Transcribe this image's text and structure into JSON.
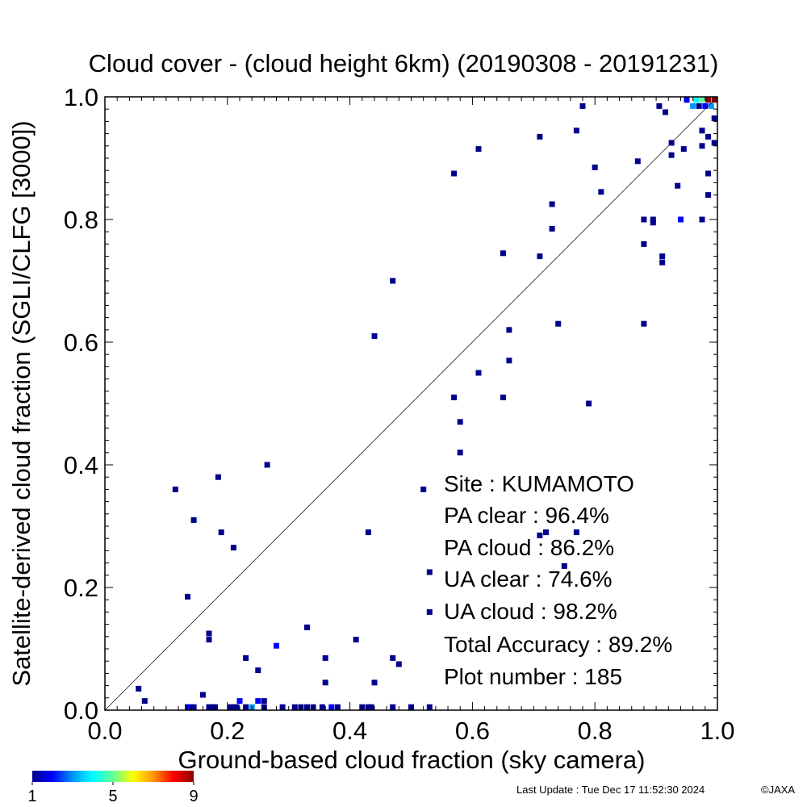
{
  "chart_data": {
    "type": "heatmap",
    "title": "Cloud cover - (cloud height 6km)  (20190308 - 20191231)",
    "xlabel": "Ground-based cloud fraction (sky camera)",
    "ylabel": "Satellite-derived cloud fraction (SGLI/CLFG [3000])",
    "xlim": [
      0.0,
      1.0
    ],
    "ylim": [
      0.0,
      1.0
    ],
    "x_ticks": [
      "0.0",
      "0.2",
      "0.4",
      "0.6",
      "0.8",
      "1.0"
    ],
    "y_ticks": [
      "0.0",
      "0.2",
      "0.4",
      "0.6",
      "0.8",
      "1.0"
    ],
    "diagonal_line": true,
    "grid": false,
    "colorbar": {
      "min": 1,
      "max": 9,
      "labels": [
        "1",
        "5",
        "9"
      ],
      "colors": [
        "#00008c",
        "#0000ff",
        "#0096ff",
        "#00ffff",
        "#64ff96",
        "#ffff00",
        "#ff9600",
        "#ff0000",
        "#8c0000"
      ]
    },
    "stats_panel": {
      "site": "Site : KUMAMOTO",
      "pa_clear": "PA clear :  96.4%",
      "pa_cloud": "PA cloud :  86.2%",
      "ua_clear": "UA clear :  74.6%",
      "ua_cloud": "UA cloud :  98.2%",
      "total": "Total Accuracy :  89.2%",
      "plot_number": "Plot number :       185"
    },
    "points": [
      {
        "x": 0.055,
        "y": 0.035,
        "count": 1
      },
      {
        "x": 0.065,
        "y": 0.015,
        "count": 1
      },
      {
        "x": 0.115,
        "y": 0.36,
        "count": 1
      },
      {
        "x": 0.135,
        "y": 0.185,
        "count": 1
      },
      {
        "x": 0.145,
        "y": 0.31,
        "count": 1
      },
      {
        "x": 0.16,
        "y": 0.025,
        "count": 1
      },
      {
        "x": 0.17,
        "y": 0.125,
        "count": 1
      },
      {
        "x": 0.17,
        "y": 0.115,
        "count": 1
      },
      {
        "x": 0.185,
        "y": 0.38,
        "count": 1
      },
      {
        "x": 0.19,
        "y": 0.29,
        "count": 1
      },
      {
        "x": 0.21,
        "y": 0.265,
        "count": 1
      },
      {
        "x": 0.23,
        "y": 0.085,
        "count": 1
      },
      {
        "x": 0.25,
        "y": 0.065,
        "count": 1
      },
      {
        "x": 0.265,
        "y": 0.4,
        "count": 1
      },
      {
        "x": 0.28,
        "y": 0.105,
        "count": 2
      },
      {
        "x": 0.33,
        "y": 0.135,
        "count": 1
      },
      {
        "x": 0.36,
        "y": 0.085,
        "count": 1
      },
      {
        "x": 0.36,
        "y": 0.045,
        "count": 1
      },
      {
        "x": 0.41,
        "y": 0.115,
        "count": 1
      },
      {
        "x": 0.43,
        "y": 0.29,
        "count": 1
      },
      {
        "x": 0.44,
        "y": 0.045,
        "count": 1
      },
      {
        "x": 0.44,
        "y": 0.61,
        "count": 1
      },
      {
        "x": 0.47,
        "y": 0.7,
        "count": 1
      },
      {
        "x": 0.47,
        "y": 0.085,
        "count": 1
      },
      {
        "x": 0.48,
        "y": 0.075,
        "count": 1
      },
      {
        "x": 0.52,
        "y": 0.36,
        "count": 1
      },
      {
        "x": 0.53,
        "y": 0.225,
        "count": 1
      },
      {
        "x": 0.53,
        "y": 0.16,
        "count": 1
      },
      {
        "x": 0.57,
        "y": 0.51,
        "count": 1
      },
      {
        "x": 0.57,
        "y": 0.875,
        "count": 1
      },
      {
        "x": 0.58,
        "y": 0.47,
        "count": 1
      },
      {
        "x": 0.58,
        "y": 0.42,
        "count": 1
      },
      {
        "x": 0.61,
        "y": 0.55,
        "count": 1
      },
      {
        "x": 0.61,
        "y": 0.915,
        "count": 1
      },
      {
        "x": 0.65,
        "y": 0.51,
        "count": 1
      },
      {
        "x": 0.65,
        "y": 0.745,
        "count": 1
      },
      {
        "x": 0.66,
        "y": 0.62,
        "count": 1
      },
      {
        "x": 0.66,
        "y": 0.57,
        "count": 1
      },
      {
        "x": 0.71,
        "y": 0.935,
        "count": 1
      },
      {
        "x": 0.71,
        "y": 0.74,
        "count": 1
      },
      {
        "x": 0.71,
        "y": 0.285,
        "count": 1
      },
      {
        "x": 0.72,
        "y": 0.29,
        "count": 1
      },
      {
        "x": 0.73,
        "y": 0.825,
        "count": 1
      },
      {
        "x": 0.73,
        "y": 0.785,
        "count": 1
      },
      {
        "x": 0.74,
        "y": 0.63,
        "count": 1
      },
      {
        "x": 0.75,
        "y": 0.235,
        "count": 1
      },
      {
        "x": 0.77,
        "y": 0.945,
        "count": 1
      },
      {
        "x": 0.77,
        "y": 0.29,
        "count": 1
      },
      {
        "x": 0.78,
        "y": 0.985,
        "count": 1
      },
      {
        "x": 0.79,
        "y": 0.5,
        "count": 1
      },
      {
        "x": 0.8,
        "y": 0.885,
        "count": 1
      },
      {
        "x": 0.81,
        "y": 0.845,
        "count": 1
      },
      {
        "x": 0.87,
        "y": 0.895,
        "count": 1
      },
      {
        "x": 0.88,
        "y": 0.8,
        "count": 1
      },
      {
        "x": 0.88,
        "y": 0.76,
        "count": 1
      },
      {
        "x": 0.88,
        "y": 0.63,
        "count": 1
      },
      {
        "x": 0.895,
        "y": 0.795,
        "count": 1
      },
      {
        "x": 0.895,
        "y": 0.8,
        "count": 1
      },
      {
        "x": 0.905,
        "y": 0.985,
        "count": 1
      },
      {
        "x": 0.91,
        "y": 0.74,
        "count": 1
      },
      {
        "x": 0.91,
        "y": 0.73,
        "count": 1
      },
      {
        "x": 0.915,
        "y": 0.975,
        "count": 1
      },
      {
        "x": 0.925,
        "y": 0.925,
        "count": 1
      },
      {
        "x": 0.925,
        "y": 0.905,
        "count": 1
      },
      {
        "x": 0.935,
        "y": 0.855,
        "count": 1
      },
      {
        "x": 0.94,
        "y": 0.8,
        "count": 2
      },
      {
        "x": 0.945,
        "y": 0.915,
        "count": 1
      },
      {
        "x": 0.95,
        "y": 0.995,
        "count": 2
      },
      {
        "x": 0.96,
        "y": 0.985,
        "count": 3
      },
      {
        "x": 0.965,
        "y": 0.995,
        "count": 4
      },
      {
        "x": 0.97,
        "y": 0.985,
        "count": 1
      },
      {
        "x": 0.975,
        "y": 0.945,
        "count": 1
      },
      {
        "x": 0.975,
        "y": 0.92,
        "count": 1
      },
      {
        "x": 0.975,
        "y": 0.8,
        "count": 1
      },
      {
        "x": 0.98,
        "y": 0.985,
        "count": 2
      },
      {
        "x": 0.975,
        "y": 0.995,
        "count": 5
      },
      {
        "x": 0.985,
        "y": 0.995,
        "count": 9
      },
      {
        "x": 0.985,
        "y": 0.935,
        "count": 1
      },
      {
        "x": 0.985,
        "y": 0.875,
        "count": 1
      },
      {
        "x": 0.985,
        "y": 0.84,
        "count": 1
      },
      {
        "x": 0.995,
        "y": 0.995,
        "count": 9
      },
      {
        "x": 0.995,
        "y": 0.965,
        "count": 1
      },
      {
        "x": 0.995,
        "y": 0.925,
        "count": 1
      },
      {
        "x": 0.99,
        "y": 0.985,
        "count": 3
      },
      {
        "x": 0.135,
        "y": 0.005,
        "count": 1
      },
      {
        "x": 0.14,
        "y": 0.005,
        "count": 2
      },
      {
        "x": 0.145,
        "y": 0.005,
        "count": 1
      },
      {
        "x": 0.17,
        "y": 0.005,
        "count": 1
      },
      {
        "x": 0.175,
        "y": 0.005,
        "count": 1
      },
      {
        "x": 0.18,
        "y": 0.005,
        "count": 1
      },
      {
        "x": 0.205,
        "y": 0.005,
        "count": 1
      },
      {
        "x": 0.21,
        "y": 0.005,
        "count": 1
      },
      {
        "x": 0.215,
        "y": 0.005,
        "count": 1
      },
      {
        "x": 0.22,
        "y": 0.015,
        "count": 2
      },
      {
        "x": 0.23,
        "y": 0.005,
        "count": 1
      },
      {
        "x": 0.24,
        "y": 0.005,
        "count": 3
      },
      {
        "x": 0.25,
        "y": 0.015,
        "count": 2
      },
      {
        "x": 0.26,
        "y": 0.015,
        "count": 1
      },
      {
        "x": 0.26,
        "y": 0.005,
        "count": 1
      },
      {
        "x": 0.29,
        "y": 0.005,
        "count": 1
      },
      {
        "x": 0.31,
        "y": 0.005,
        "count": 1
      },
      {
        "x": 0.32,
        "y": 0.005,
        "count": 1
      },
      {
        "x": 0.33,
        "y": 0.005,
        "count": 1
      },
      {
        "x": 0.34,
        "y": 0.005,
        "count": 1
      },
      {
        "x": 0.355,
        "y": 0.005,
        "count": 1
      },
      {
        "x": 0.37,
        "y": 0.005,
        "count": 2
      },
      {
        "x": 0.38,
        "y": 0.005,
        "count": 1
      },
      {
        "x": 0.42,
        "y": 0.005,
        "count": 1
      },
      {
        "x": 0.43,
        "y": 0.005,
        "count": 1
      },
      {
        "x": 0.435,
        "y": 0.005,
        "count": 1
      },
      {
        "x": 0.47,
        "y": 0.005,
        "count": 1
      },
      {
        "x": 0.5,
        "y": 0.005,
        "count": 1
      },
      {
        "x": 0.53,
        "y": 0.005,
        "count": 1
      }
    ]
  },
  "footer": {
    "last_update": "Last Update : Tue Dec 17 11:52:30 2024",
    "copyright": "©JAXA"
  }
}
